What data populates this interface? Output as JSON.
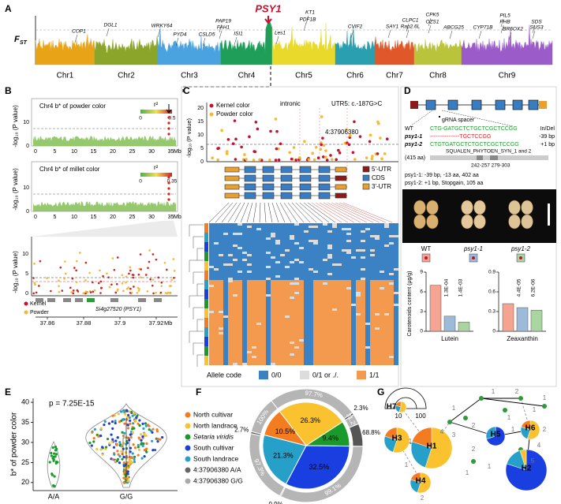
{
  "panel_labels": [
    "A",
    "B",
    "C",
    "D",
    "E",
    "F",
    "G"
  ],
  "A": {
    "y_label": "F",
    "y_sub": "ST",
    "peak": "PSY1",
    "genes": [
      "COP1",
      "DGL1",
      "WRKY64",
      "PYD4",
      "CSLD5",
      "PAP19",
      "FAH1",
      "ISI1",
      "Les1",
      "KT1",
      "PDF1B",
      "CVIF2",
      "SAY1",
      "CLPC1",
      "Rap2.6L",
      "CPK5",
      "OZS1",
      "ABCG25",
      "CYP71B",
      "PIL5",
      "PHB",
      "BR6OX2",
      "SDS",
      "SUS3"
    ],
    "chromosomes": [
      "Chr1",
      "Chr2",
      "Chr3",
      "Chr4",
      "Chr5",
      "Chr6",
      "Chr7",
      "Chr8",
      "Chr9"
    ],
    "colors": [
      "#e8a317",
      "#8aa52a",
      "#4aa3df",
      "#1f9e5a",
      "#e8d92a",
      "#2a9fb0",
      "#e0582a",
      "#b9c43a",
      "#9b5bc8"
    ]
  },
  "B": {
    "y_label": "-log₁₀ (P value)",
    "track1": "Chr4   b* of powder color",
    "track2": "Chr4   b* of millet color",
    "r2": "r²",
    "scale1": [
      "0",
      "0.5"
    ],
    "scale2": [
      "0",
      "0.35"
    ],
    "yticks1": [
      "0",
      "10"
    ],
    "yticks2": [
      "0",
      "10"
    ],
    "xticks": [
      "0",
      "5",
      "10",
      "15",
      "20",
      "25",
      "30",
      "35"
    ],
    "unit": "Mb",
    "zoom_yticks": [
      "0",
      "5",
      "10"
    ],
    "legend": [
      "Kernel",
      "Powder"
    ],
    "gene": "Si4g27520 (PSY1)",
    "zoom_xticks": [
      "37.86",
      "37.88",
      "37.9",
      "37.92"
    ],
    "zoom_unit": "Mb"
  },
  "C": {
    "legend": [
      "Kernel color",
      "Powder color"
    ],
    "intronic": "intronic",
    "utr5": "UTR5: c.-187G>C",
    "snp": "4:37906380",
    "y_label": "-log₁₀ (P value)",
    "yticks": [
      "0",
      "5",
      "10",
      "15",
      "20"
    ],
    "gene_legend": [
      "5'-UTR",
      "CDS",
      "3'-UTR"
    ],
    "allele_title": "Allele code",
    "allele_codes": [
      "0/0",
      "0/1 or ./.",
      "1/1"
    ]
  },
  "D": {
    "spacer": "gRNA spacer",
    "rows": [
      {
        "name": "WT",
        "seq": "CTG-GATGCTCTGCTCGCTCCGG",
        "note": "In/Del"
      },
      {
        "name": "psy1-1",
        "seq": "----------------TGCTCCGG",
        "note": "-39 bp"
      },
      {
        "name": "psy1-2",
        "seq": "CTGTGATGCTCTGCTCGCTCCGG",
        "note": "+1 bp"
      }
    ],
    "protein": "(415 aa)",
    "domain": "SQUALEN_PHYTOEN_SYN_1 and 2",
    "domain_pos": "242-257   279-303",
    "mut": [
      "psy1-1: -39 bp, -13 aa, 402 aa",
      "psy1-2: +1 bp, Stopgain, 105 aa"
    ],
    "seeds": [
      "WT",
      "psy1-1",
      "psy1-2"
    ],
    "y_label": "Carotenoids content (μg/g)",
    "charts": [
      {
        "name": "Lutein",
        "ylim": [
          0,
          9
        ],
        "yticks": [
          0,
          3,
          6,
          9
        ],
        "values": [
          7,
          2.3,
          1.4
        ],
        "p": [
          "1.3E-04",
          "1.4E-03"
        ]
      },
      {
        "name": "Zeaxanthin",
        "ylim": [
          0,
          0.9
        ],
        "yticks": [
          0,
          0.3,
          0.6,
          0.9
        ],
        "values": [
          0.42,
          0.36,
          0.32
        ],
        "p": [
          "4.4E-05",
          "6.2E-06"
        ]
      }
    ]
  },
  "E": {
    "p": "p = 7.25E-15",
    "y_label": "b* of powder color",
    "ylim": [
      18,
      41
    ],
    "yticks": [
      20,
      25,
      30,
      35,
      40
    ],
    "categories": [
      "A/A",
      "G/G"
    ],
    "legend": [
      {
        "name": "North cultivar",
        "color": "#f47c20"
      },
      {
        "name": "North landrace",
        "color": "#f9c22e"
      },
      {
        "name": "Setaria viridis",
        "color": "#1a9a2a",
        "italic": true
      },
      {
        "name": "South cultivar",
        "color": "#1a3fe0"
      },
      {
        "name": "South landrace",
        "color": "#26a0c8"
      },
      {
        "name": "4:37906380 A/A",
        "color": "#666666"
      },
      {
        "name": "4:37906380 G/G",
        "color": "#aaaaaa"
      }
    ]
  },
  "F": {
    "groups": [
      {
        "color": "#f9c22e",
        "value": 26.3,
        "label": "26.3%",
        "gg": {
          "value": 97.7,
          "label": "97.7%"
        },
        "aa": {
          "value": 2.3,
          "label": "2.3%"
        }
      },
      {
        "color": "#1a9a2a",
        "value": 9.4,
        "label": "9.4%",
        "gg": {
          "value": 31.2,
          "label": "31.2%"
        },
        "aa": {
          "value": 68.8,
          "label": "68.8%"
        }
      },
      {
        "color": "#1a3fe0",
        "value": 32.5,
        "label": "32.5%",
        "gg": {
          "value": 99.1,
          "label": "99.1%"
        },
        "aa": {
          "value": 0.9,
          "label": "0.9%"
        }
      },
      {
        "color": "#26a0c8",
        "value": 21.3,
        "label": "21.3%",
        "gg": {
          "value": 97.3,
          "label": "97.3%"
        },
        "aa": {
          "value": 2.7,
          "label": "2.7%"
        }
      },
      {
        "color": "#f47c20",
        "value": 10.5,
        "label": "10.5%",
        "gg": {
          "value": 100,
          "label": "100%"
        }
      }
    ]
  },
  "G": {
    "nodes": [
      "H1",
      "H2",
      "H3",
      "H4",
      "H5",
      "H6",
      "H7"
    ],
    "scale": [
      "10",
      "100"
    ],
    "edges": [
      "1",
      "1",
      "2",
      "1",
      "2",
      "1",
      "1",
      "1",
      "4",
      "4",
      "3",
      "5",
      "2",
      "1",
      "1",
      "2",
      "1",
      "1",
      "2"
    ]
  }
}
